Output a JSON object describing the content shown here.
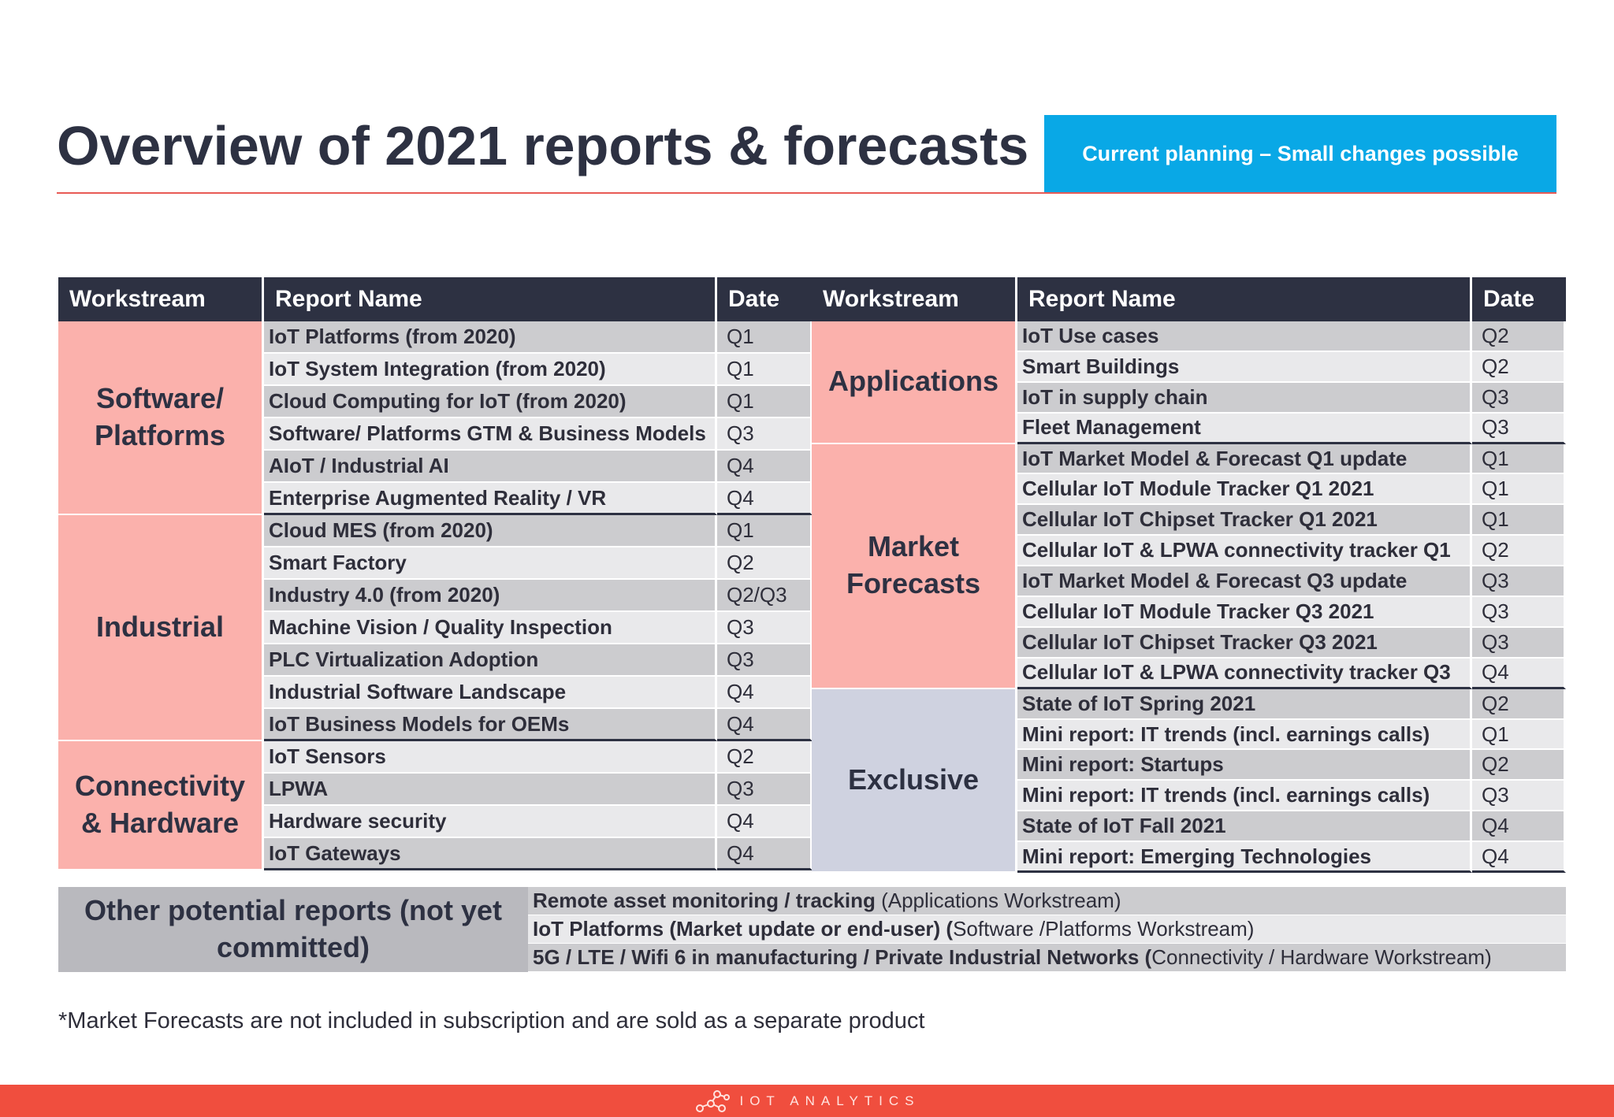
{
  "header": {
    "title": "Overview of 2021 reports & forecasts",
    "badge": "Current planning – Small changes possible"
  },
  "columns": {
    "workstream": "Workstream",
    "report_name": "Report Name",
    "date": "Date"
  },
  "left_groups": [
    {
      "workstream": "Software/ Platforms",
      "color": "red",
      "reports": [
        {
          "name": "IoT Platforms (from 2020)",
          "date": "Q1"
        },
        {
          "name": "IoT System Integration (from 2020)",
          "date": "Q1"
        },
        {
          "name": "Cloud Computing for IoT (from 2020)",
          "date": "Q1"
        },
        {
          "name": "Software/ Platforms GTM & Business Models",
          "date": "Q3"
        },
        {
          "name": "AIoT / Industrial AI",
          "date": "Q4"
        },
        {
          "name": "Enterprise Augmented Reality / VR",
          "date": "Q4"
        }
      ]
    },
    {
      "workstream": "Industrial",
      "color": "red",
      "reports": [
        {
          "name": "Cloud MES (from 2020)",
          "date": "Q1"
        },
        {
          "name": "Smart Factory",
          "date": "Q2"
        },
        {
          "name": "Industry 4.0 (from 2020)",
          "date": "Q2/Q3"
        },
        {
          "name": "Machine Vision / Quality Inspection",
          "date": "Q3"
        },
        {
          "name": "PLC Virtualization Adoption",
          "date": "Q3"
        },
        {
          "name": "Industrial Software Landscape",
          "date": "Q4"
        },
        {
          "name": "IoT Business Models for OEMs",
          "date": "Q4"
        }
      ]
    },
    {
      "workstream": "Connectivity & Hardware",
      "color": "red",
      "reports": [
        {
          "name": "IoT Sensors",
          "date": "Q2"
        },
        {
          "name": "LPWA",
          "date": "Q3"
        },
        {
          "name": "Hardware security",
          "date": "Q4"
        },
        {
          "name": "IoT Gateways",
          "date": "Q4"
        }
      ]
    }
  ],
  "right_groups": [
    {
      "workstream": "Applications",
      "color": "red",
      "reports": [
        {
          "name": "IoT Use cases",
          "date": "Q2"
        },
        {
          "name": "Smart Buildings",
          "date": "Q2"
        },
        {
          "name": "IoT in supply chain",
          "date": "Q3"
        },
        {
          "name": "Fleet Management",
          "date": "Q3"
        }
      ]
    },
    {
      "workstream": "Market Forecasts",
      "color": "red",
      "reports": [
        {
          "name": "IoT Market Model & Forecast Q1 update",
          "date": "Q1"
        },
        {
          "name": "Cellular IoT Module Tracker Q1 2021",
          "date": "Q1"
        },
        {
          "name": "Cellular IoT Chipset Tracker Q1 2021",
          "date": "Q1"
        },
        {
          "name": "Cellular IoT & LPWA connectivity tracker Q1",
          "date": "Q2"
        },
        {
          "name": "IoT Market Model & Forecast Q3 update",
          "date": "Q3"
        },
        {
          "name": "Cellular IoT Module Tracker Q3 2021",
          "date": "Q3"
        },
        {
          "name": "Cellular IoT Chipset Tracker Q3 2021",
          "date": "Q3"
        },
        {
          "name": "Cellular IoT & LPWA connectivity tracker Q3",
          "date": "Q4"
        }
      ]
    },
    {
      "workstream": "Exclusive",
      "color": "blue",
      "reports": [
        {
          "name": "State of IoT Spring 2021",
          "date": "Q2"
        },
        {
          "name": "Mini report: IT trends (incl. earnings calls)",
          "date": "Q1"
        },
        {
          "name": "Mini report: Startups",
          "date": "Q2"
        },
        {
          "name": "Mini report: IT trends (incl. earnings calls)",
          "date": "Q3"
        },
        {
          "name": "State of IoT Fall 2021",
          "date": "Q4"
        },
        {
          "name": "Mini report: Emerging Technologies",
          "date": "Q4"
        }
      ]
    }
  ],
  "other": {
    "label": "Other potential reports (not yet committed)",
    "items": [
      {
        "bold": "Remote asset monitoring / tracking",
        "normal": " (Applications Workstream)"
      },
      {
        "bold": "IoT Platforms (Market update or end-user) (",
        "normal": "Software /Platforms Workstream)"
      },
      {
        "bold": "5G / LTE / Wifi 6 in manufacturing / Private Industrial Networks (",
        "normal": "Connectivity / Hardware Workstream)"
      }
    ]
  },
  "footnote": "*Market Forecasts are not included in subscription and are sold as a separate product",
  "footer": {
    "logo_text": "IOT ANALYTICS"
  }
}
